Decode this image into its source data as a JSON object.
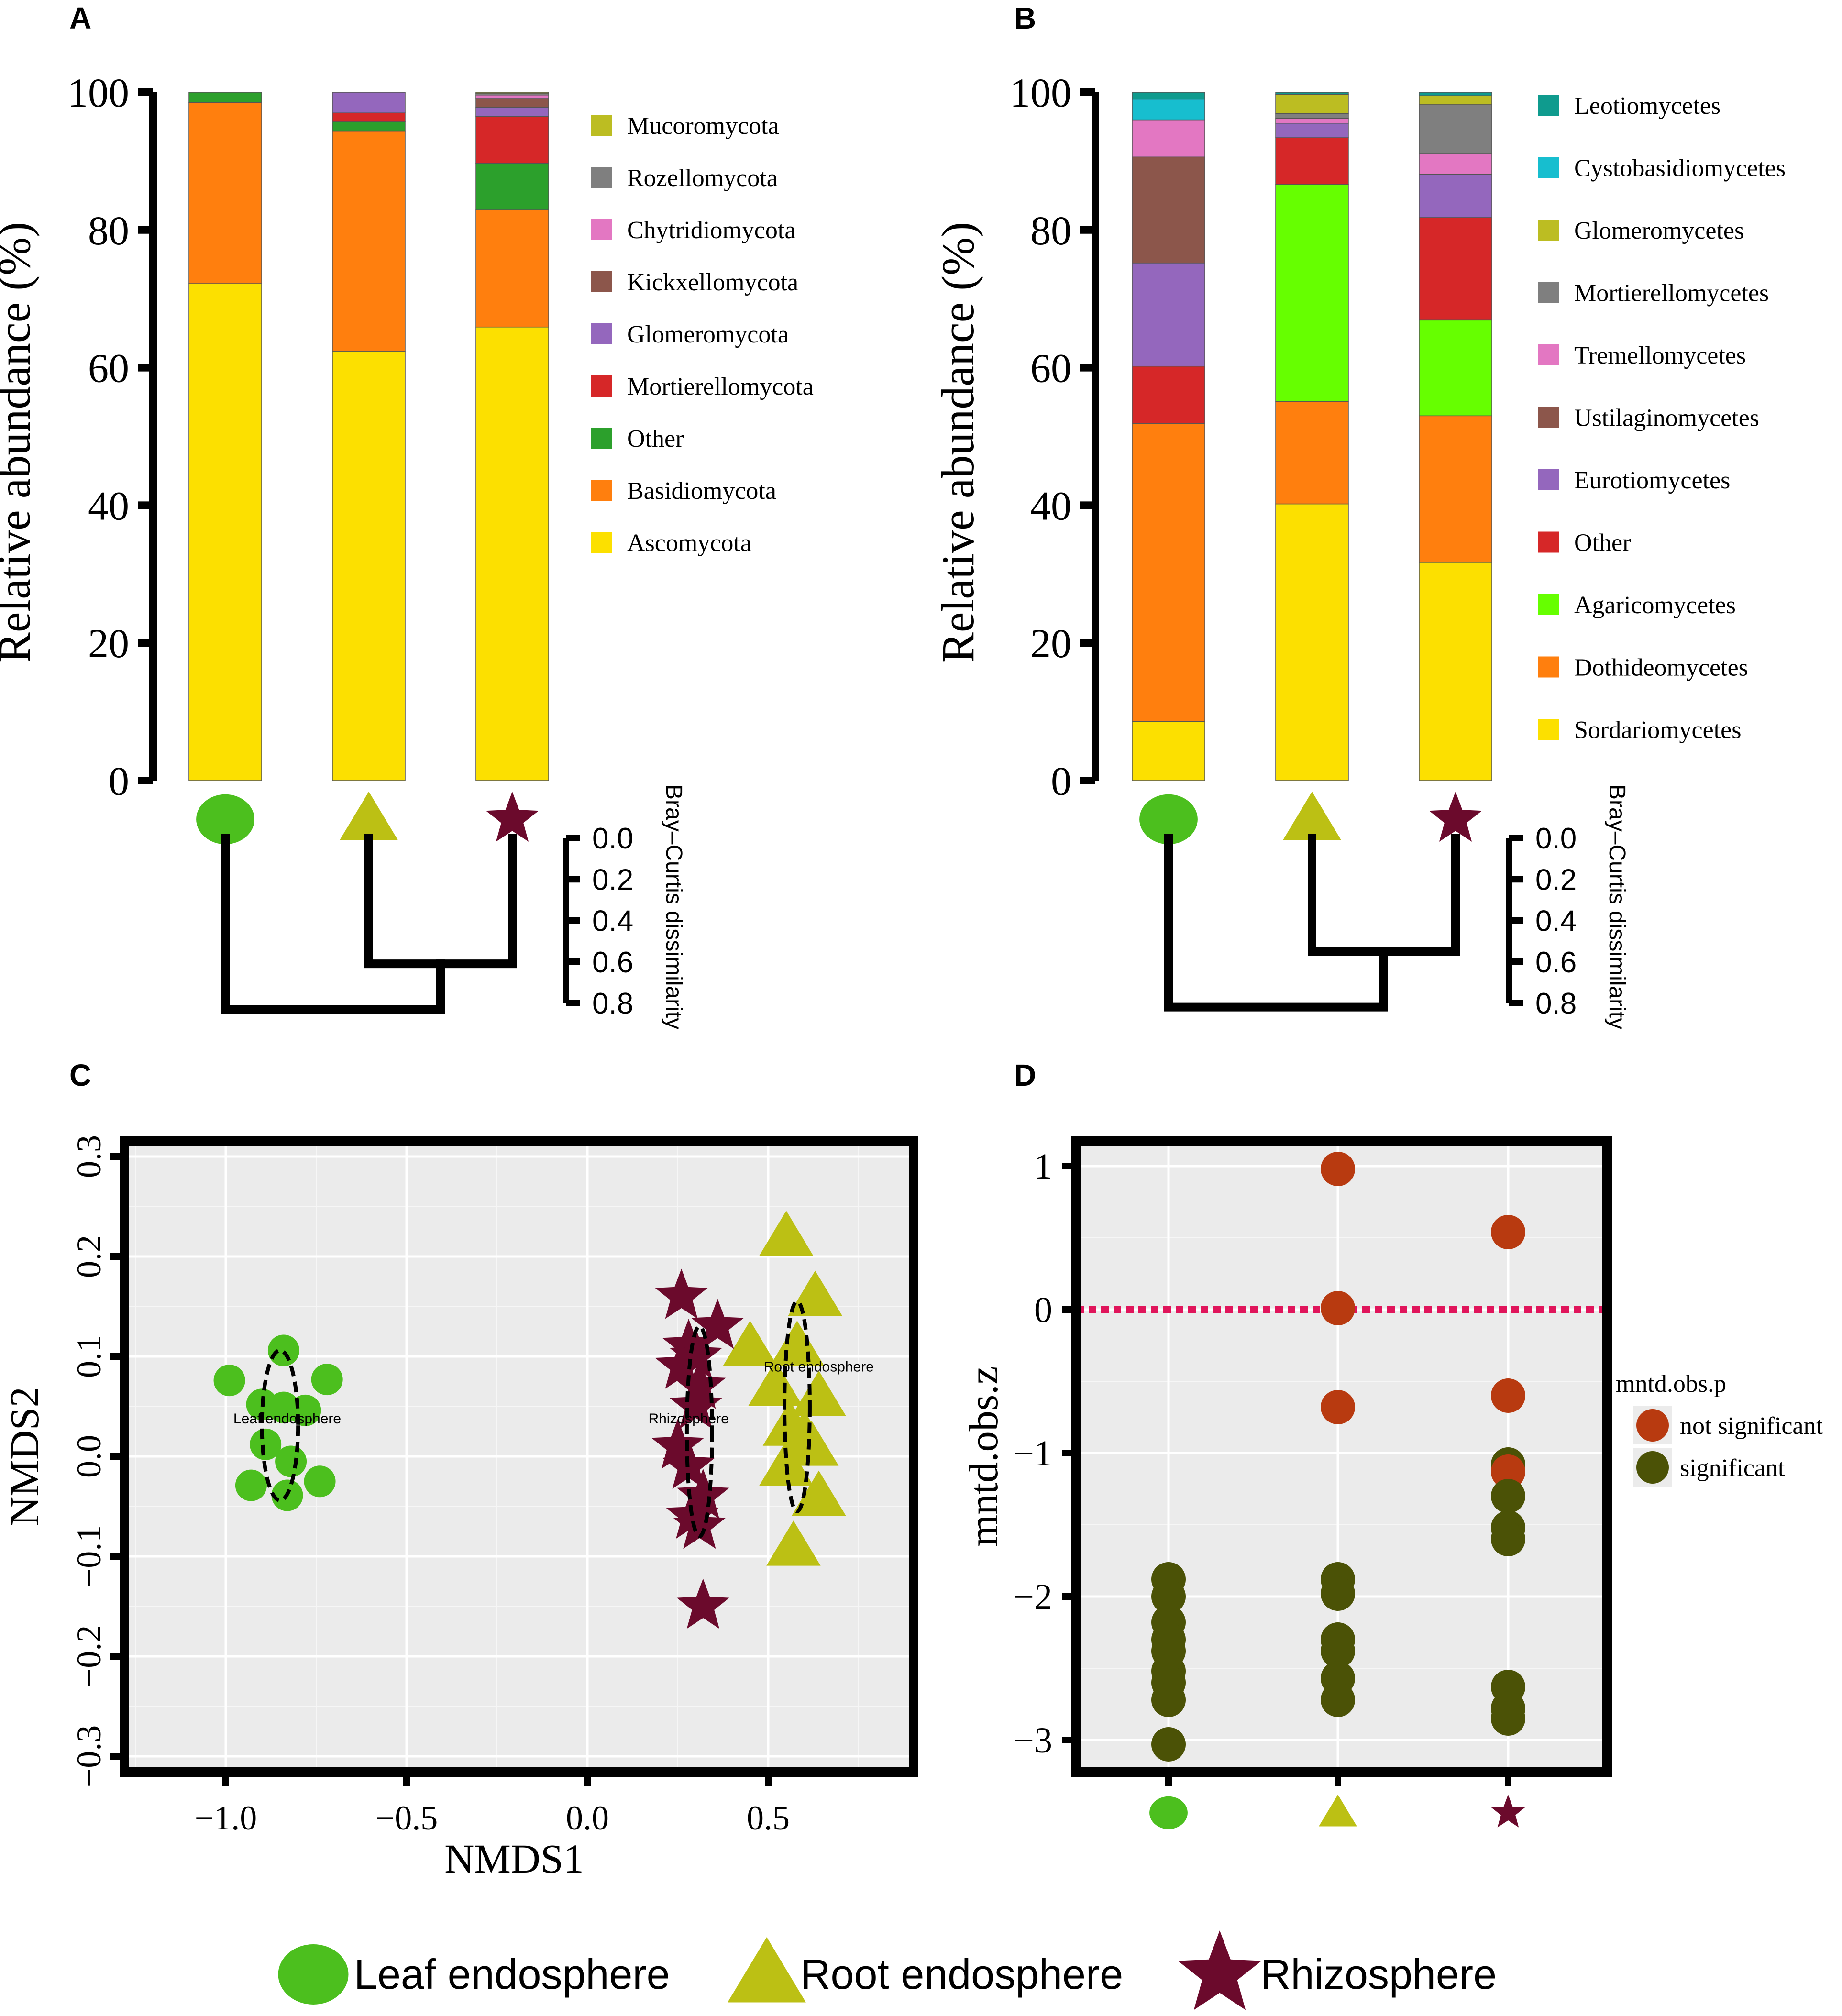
{
  "colors": {
    "leaf": "#4cbf1e",
    "root": "#bcc014",
    "rhizo": "#6b0a2c",
    "not_significant": "#b83a10",
    "significant": "#4b5206",
    "zero_line": "#e0155b",
    "panel_bg": "#ebebeb"
  },
  "legend_bottom": [
    {
      "label": "Leaf endosphere",
      "shape": "ellipse-icon"
    },
    {
      "label": "Root endosphere",
      "shape": "triangle-icon"
    },
    {
      "label": "Rhizosphere",
      "shape": "star-icon"
    }
  ],
  "chart_data": [
    {
      "panel": "A",
      "type": "bar",
      "stacked": true,
      "ylabel": "Relative abundance (%)",
      "ylim": [
        0,
        100
      ],
      "yticks": [
        "0",
        "20",
        "40",
        "60",
        "80",
        "100"
      ],
      "categories": [
        "Leaf endosphere",
        "Root endosphere",
        "Rhizosphere"
      ],
      "series": [
        {
          "name": "Ascomycota",
          "color": "#fce000",
          "values": [
            72.2,
            62.4,
            65.9
          ]
        },
        {
          "name": "Basidiomycota",
          "color": "#ff7f0e",
          "values": [
            26.3,
            32.0,
            17.0
          ]
        },
        {
          "name": "Other",
          "color": "#2ca02c",
          "values": [
            1.5,
            1.3,
            6.8
          ]
        },
        {
          "name": "Mortierellomycota",
          "color": "#d62728",
          "values": [
            0.0,
            1.3,
            6.8
          ]
        },
        {
          "name": "Glomeromycota",
          "color": "#9467bd",
          "values": [
            0.0,
            3.0,
            1.3
          ]
        },
        {
          "name": "Kickxellomycota",
          "color": "#8c564b",
          "values": [
            0.0,
            0.0,
            1.3
          ]
        },
        {
          "name": "Chytridiomycota",
          "color": "#e377c2",
          "values": [
            0.0,
            0.0,
            0.5
          ]
        },
        {
          "name": "Rozellomycota",
          "color": "#7f7f7f",
          "values": [
            0.0,
            0.0,
            0.2
          ]
        },
        {
          "name": "Mucoromycota",
          "color": "#bcbd22",
          "values": [
            0.0,
            0.0,
            0.2
          ]
        }
      ],
      "legend_order": [
        "Mucoromycota",
        "Rozellomycota",
        "Chytridiomycota",
        "Kickxellomycota",
        "Glomeromycota",
        "Mortierellomycota",
        "Other",
        "Basidiomycota",
        "Ascomycota"
      ],
      "dendrogram": {
        "axis_label": "Bray–Curtis dissimilarity",
        "ticks": [
          "0.0",
          "0.2",
          "0.4",
          "0.6",
          "0.8"
        ],
        "merges": [
          {
            "members": [
              "Root endosphere",
              "Rhizosphere"
            ],
            "height": 0.61
          },
          {
            "members": [
              "Leaf endosphere",
              "Root+Rhizosphere"
            ],
            "height": 0.83
          }
        ]
      }
    },
    {
      "panel": "B",
      "type": "bar",
      "stacked": true,
      "ylabel": "Relative abundance (%)",
      "ylim": [
        0,
        100
      ],
      "yticks": [
        "0",
        "20",
        "40",
        "60",
        "80",
        "100"
      ],
      "categories": [
        "Leaf endosphere",
        "Root endosphere",
        "Rhizosphere"
      ],
      "series": [
        {
          "name": "Sordariomycetes",
          "color": "#fce000",
          "values": [
            8.6,
            40.2,
            31.7
          ]
        },
        {
          "name": "Dothideomycetes",
          "color": "#ff7f0e",
          "values": [
            43.3,
            14.9,
            21.3
          ]
        },
        {
          "name": "Agaricomycetes",
          "color": "#66ff00",
          "values": [
            0.0,
            31.5,
            13.9
          ]
        },
        {
          "name": "Other",
          "color": "#d62728",
          "values": [
            8.3,
            6.8,
            14.9
          ]
        },
        {
          "name": "Eurotiomycetes",
          "color": "#9467bd",
          "values": [
            15.0,
            2.1,
            6.3
          ]
        },
        {
          "name": "Ustilaginomycetes",
          "color": "#8c564b",
          "values": [
            15.4,
            0.0,
            0.0
          ]
        },
        {
          "name": "Tremellomycetes",
          "color": "#e377c2",
          "values": [
            5.4,
            0.7,
            3.0
          ]
        },
        {
          "name": "Mortierellomycetes",
          "color": "#7f7f7f",
          "values": [
            0.0,
            0.7,
            7.1
          ]
        },
        {
          "name": "Glomeromycetes",
          "color": "#bcbd22",
          "values": [
            0.0,
            2.8,
            1.3
          ]
        },
        {
          "name": "Cystobasidiomycetes",
          "color": "#17becf",
          "values": [
            3.0,
            0.0,
            0.0
          ]
        },
        {
          "name": "Leotiomycetes",
          "color": "#0f9b8e",
          "values": [
            1.0,
            0.3,
            0.5
          ]
        }
      ],
      "legend_order": [
        "Leotiomycetes",
        "Cystobasidiomycetes",
        "Glomeromycetes",
        "Mortierellomycetes",
        "Tremellomycetes",
        "Ustilaginomycetes",
        "Eurotiomycetes",
        "Other",
        "Agaricomycetes",
        "Dothideomycetes",
        "Sordariomycetes"
      ],
      "dendrogram": {
        "axis_label": "Bray–Curtis dissimilarity",
        "ticks": [
          "0.0",
          "0.2",
          "0.4",
          "0.6",
          "0.8"
        ],
        "merges": [
          {
            "members": [
              "Root endosphere",
              "Rhizosphere"
            ],
            "height": 0.55
          },
          {
            "members": [
              "Leaf endosphere",
              "Root+Rhizosphere"
            ],
            "height": 0.82
          }
        ]
      }
    },
    {
      "panel": "C",
      "type": "scatter",
      "xlabel": "NMDS1",
      "ylabel": "NMDS2",
      "xlim": [
        -1.3,
        0.9
      ],
      "ylim": [
        -0.33,
        0.32
      ],
      "xticks": [
        -1.0,
        -0.5,
        0.0,
        0.5
      ],
      "xtick_labels": [
        "−1.0",
        "−0.5",
        "0.0",
        "0.5"
      ],
      "yticks": [
        -0.3,
        -0.2,
        -0.1,
        0.0,
        0.1,
        0.2,
        0.3
      ],
      "ytick_labels": [
        "−0.3",
        "−0.2",
        "−0.1",
        "0.0",
        "0.1",
        "0.2",
        "0.3"
      ],
      "grid": true,
      "series": [
        {
          "name": "Leaf endosphere",
          "marker": "circle",
          "color": "#4cbf1e",
          "label": "Leaf endosphere",
          "label_at": [
            -0.83,
            0.033
          ],
          "ellipse": {
            "cx": -0.85,
            "cy": 0.031,
            "rx": 0.05,
            "ry": 0.075
          },
          "points": [
            [
              -0.99,
              0.076
            ],
            [
              -0.84,
              0.106
            ],
            [
              -0.72,
              0.077
            ],
            [
              -0.9,
              0.052
            ],
            [
              -0.84,
              0.049
            ],
            [
              -0.78,
              0.046
            ],
            [
              -0.89,
              0.012
            ],
            [
              -0.82,
              -0.005
            ],
            [
              -0.93,
              -0.029
            ],
            [
              -0.83,
              -0.039
            ],
            [
              -0.74,
              -0.025
            ]
          ]
        },
        {
          "name": "Root endosphere",
          "marker": "triangle",
          "color": "#bcc014",
          "label": "Root endosphere",
          "label_at": [
            0.64,
            0.085
          ],
          "ellipse": {
            "cx": 0.58,
            "cy": 0.05,
            "rx": 0.035,
            "ry": 0.105
          },
          "points": [
            [
              0.55,
              0.22
            ],
            [
              0.63,
              0.16
            ],
            [
              0.45,
              0.11
            ],
            [
              0.58,
              0.11
            ],
            [
              0.52,
              0.07
            ],
            [
              0.64,
              0.06
            ],
            [
              0.56,
              0.03
            ],
            [
              0.6,
              0.02
            ],
            [
              0.55,
              -0.01
            ],
            [
              0.62,
              0.01
            ],
            [
              0.64,
              -0.04
            ],
            [
              0.57,
              -0.09
            ]
          ]
        },
        {
          "name": "Rhizosphere",
          "marker": "star",
          "color": "#6b0a2c",
          "label": "Rhizosphere",
          "label_at": [
            0.28,
            0.033
          ],
          "ellipse": {
            "cx": 0.31,
            "cy": 0.025,
            "rx": 0.035,
            "ry": 0.105
          },
          "points": [
            [
              0.26,
              0.16
            ],
            [
              0.36,
              0.13
            ],
            [
              0.28,
              0.11
            ],
            [
              0.3,
              0.1
            ],
            [
              0.26,
              0.09
            ],
            [
              0.31,
              0.07
            ],
            [
              0.3,
              0.05
            ],
            [
              0.25,
              0.01
            ],
            [
              0.28,
              -0.01
            ],
            [
              0.32,
              -0.04
            ],
            [
              0.29,
              -0.06
            ],
            [
              0.31,
              -0.07
            ],
            [
              0.32,
              -0.15
            ]
          ]
        }
      ]
    },
    {
      "panel": "D",
      "type": "scatter",
      "ylabel": "mntd.obs.z",
      "ylim": [
        -3.3,
        1.05
      ],
      "yticks": [
        1,
        0,
        -1,
        -2,
        -3
      ],
      "ytick_labels": [
        "1",
        "0",
        "−1",
        "−2",
        "−3"
      ],
      "categories": [
        "Leaf endosphere",
        "Root endosphere",
        "Rhizosphere"
      ],
      "reference_line_y": 0,
      "legend_title": "mntd.obs.p",
      "legend_entries": [
        "not significant",
        "significant"
      ],
      "points": [
        {
          "group": 0,
          "y": -1.88,
          "sig": "significant"
        },
        {
          "group": 0,
          "y": -2.0,
          "sig": "significant"
        },
        {
          "group": 0,
          "y": -2.18,
          "sig": "significant"
        },
        {
          "group": 0,
          "y": -2.3,
          "sig": "significant"
        },
        {
          "group": 0,
          "y": -2.38,
          "sig": "significant"
        },
        {
          "group": 0,
          "y": -2.52,
          "sig": "significant"
        },
        {
          "group": 0,
          "y": -2.6,
          "sig": "significant"
        },
        {
          "group": 0,
          "y": -2.72,
          "sig": "significant"
        },
        {
          "group": 0,
          "y": -3.03,
          "sig": "significant"
        },
        {
          "group": 1,
          "y": 0.98,
          "sig": "not significant"
        },
        {
          "group": 1,
          "y": 0.01,
          "sig": "not significant"
        },
        {
          "group": 1,
          "y": -0.68,
          "sig": "not significant"
        },
        {
          "group": 1,
          "y": -1.88,
          "sig": "significant"
        },
        {
          "group": 1,
          "y": -1.98,
          "sig": "significant"
        },
        {
          "group": 1,
          "y": -2.3,
          "sig": "significant"
        },
        {
          "group": 1,
          "y": -2.38,
          "sig": "significant"
        },
        {
          "group": 1,
          "y": -2.57,
          "sig": "significant"
        },
        {
          "group": 1,
          "y": -2.72,
          "sig": "significant"
        },
        {
          "group": 2,
          "y": 0.54,
          "sig": "not significant"
        },
        {
          "group": 2,
          "y": -0.6,
          "sig": "not significant"
        },
        {
          "group": 2,
          "y": -1.08,
          "sig": "significant"
        },
        {
          "group": 2,
          "y": -1.13,
          "sig": "not significant"
        },
        {
          "group": 2,
          "y": -1.3,
          "sig": "significant"
        },
        {
          "group": 2,
          "y": -1.52,
          "sig": "significant"
        },
        {
          "group": 2,
          "y": -1.6,
          "sig": "significant"
        },
        {
          "group": 2,
          "y": -2.63,
          "sig": "significant"
        },
        {
          "group": 2,
          "y": -2.78,
          "sig": "significant"
        },
        {
          "group": 2,
          "y": -2.85,
          "sig": "significant"
        }
      ]
    }
  ]
}
